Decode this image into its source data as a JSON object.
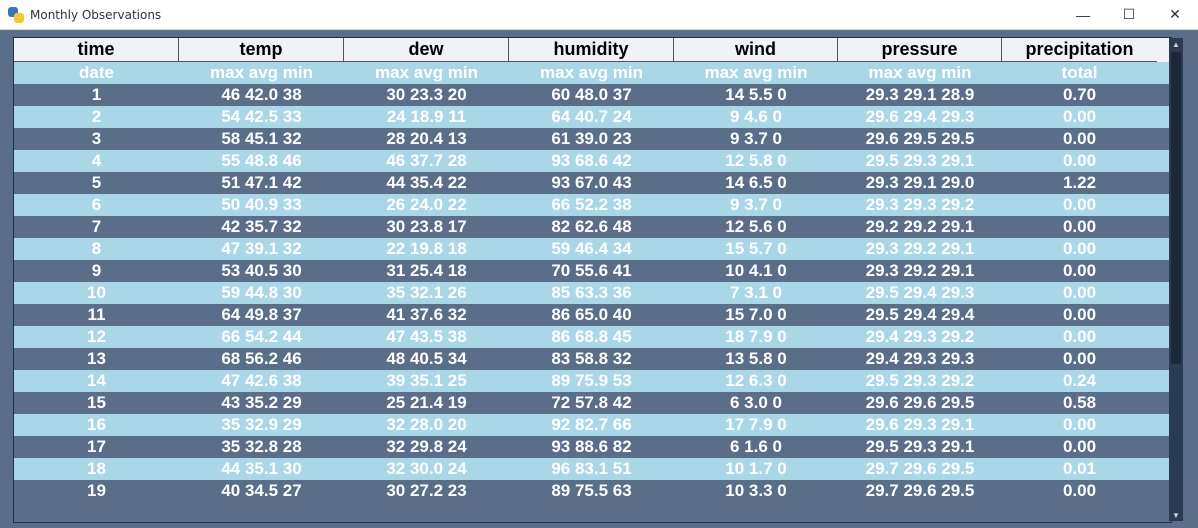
{
  "window": {
    "title": "Monthly Observations",
    "controls": {
      "minimize": "—",
      "maximize": "☐",
      "close": "✕"
    }
  },
  "table": {
    "columns": [
      "time",
      "temp",
      "dew",
      "humidity",
      "wind",
      "pressure",
      "precipitation"
    ],
    "subheader": [
      "date",
      "max avg min",
      "max avg min",
      "max avg min",
      "max avg min",
      "max avg min",
      "total"
    ],
    "rows": [
      [
        "1",
        "46 42.0 38",
        "30 23.3 20",
        "60 48.0 37",
        "14 5.5 0",
        "29.3 29.1 28.9",
        "0.70"
      ],
      [
        "2",
        "54 42.5 33",
        "24 18.9 11",
        "64 40.7 24",
        "9 4.6 0",
        "29.6 29.4 29.3",
        "0.00"
      ],
      [
        "3",
        "58 45.1 32",
        "28 20.4 13",
        "61 39.0 23",
        "9 3.7 0",
        "29.6 29.5 29.5",
        "0.00"
      ],
      [
        "4",
        "55 48.8 46",
        "46 37.7 28",
        "93 68.6 42",
        "12 5.8 0",
        "29.5 29.3 29.1",
        "0.00"
      ],
      [
        "5",
        "51 47.1 42",
        "44 35.4 22",
        "93 67.0 43",
        "14 6.5 0",
        "29.3 29.1 29.0",
        "1.22"
      ],
      [
        "6",
        "50 40.9 33",
        "26 24.0 22",
        "66 52.2 38",
        "9 3.7 0",
        "29.3 29.3 29.2",
        "0.00"
      ],
      [
        "7",
        "42 35.7 32",
        "30 23.8 17",
        "82 62.6 48",
        "12 5.6 0",
        "29.2 29.2 29.1",
        "0.00"
      ],
      [
        "8",
        "47 39.1 32",
        "22 19.8 18",
        "59 46.4 34",
        "15 5.7 0",
        "29.3 29.2 29.1",
        "0.00"
      ],
      [
        "9",
        "53 40.5 30",
        "31 25.4 18",
        "70 55.6 41",
        "10 4.1 0",
        "29.3 29.2 29.1",
        "0.00"
      ],
      [
        "10",
        "59 44.8 30",
        "35 32.1 26",
        "85 63.3 36",
        "7 3.1 0",
        "29.5 29.4 29.3",
        "0.00"
      ],
      [
        "11",
        "64 49.8 37",
        "41 37.6 32",
        "86 65.0 40",
        "15 7.0 0",
        "29.5 29.4 29.4",
        "0.00"
      ],
      [
        "12",
        "66 54.2 44",
        "47 43.5 38",
        "86 68.8 45",
        "18 7.9 0",
        "29.4 29.3 29.2",
        "0.00"
      ],
      [
        "13",
        "68 56.2 46",
        "48 40.5 34",
        "83 58.8 32",
        "13 5.8 0",
        "29.4 29.3 29.3",
        "0.00"
      ],
      [
        "14",
        "47 42.6 38",
        "39 35.1 25",
        "89 75.9 53",
        "12 6.3 0",
        "29.5 29.3 29.2",
        "0.24"
      ],
      [
        "15",
        "43 35.2 29",
        "25 21.4 19",
        "72 57.8 42",
        "6 3.0 0",
        "29.6 29.6 29.5",
        "0.58"
      ],
      [
        "16",
        "35 32.9 29",
        "32 28.0 20",
        "92 82.7 66",
        "17 7.9 0",
        "29.6 29.3 29.1",
        "0.00"
      ],
      [
        "17",
        "35 32.8 28",
        "32 29.8 24",
        "93 88.6 82",
        "6 1.6 0",
        "29.5 29.3 29.1",
        "0.00"
      ],
      [
        "18",
        "44 35.1 30",
        "32 30.0 24",
        "96 83.1 51",
        "10 1.7 0",
        "29.7 29.6 29.5",
        "0.01"
      ],
      [
        "19",
        "40 34.5 27",
        "30 27.2 23",
        "89 75.5 63",
        "10 3.3 0",
        "29.7 29.6 29.5",
        "0.00"
      ]
    ]
  },
  "colors": {
    "light_row": "#a9d7e7",
    "dark_row": "#5a6d89",
    "header_bg": "#f0f2f8"
  },
  "icons": {
    "app": "python-icon",
    "scroll_up": "▲",
    "scroll_down": "▼"
  }
}
